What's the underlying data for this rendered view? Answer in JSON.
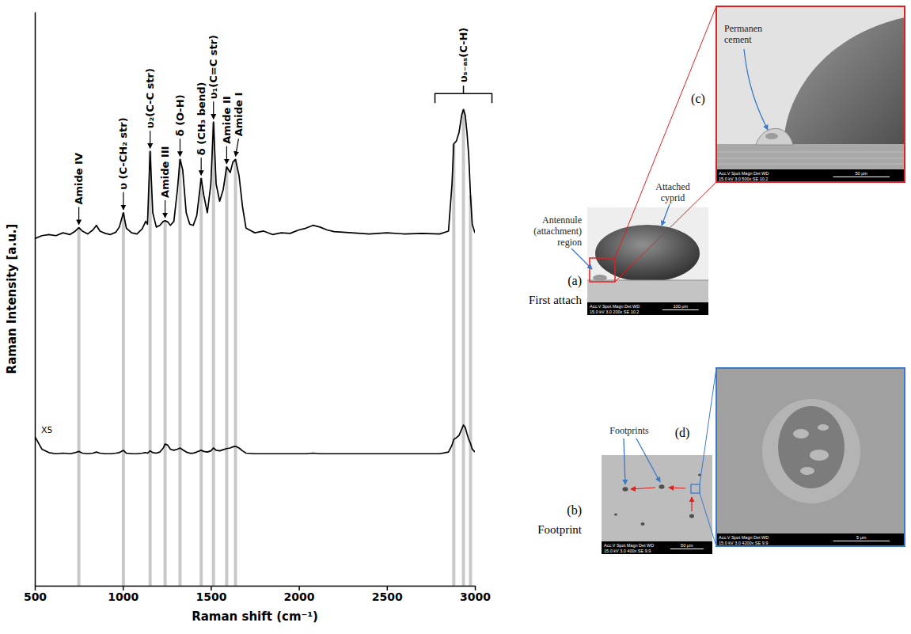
{
  "chart_data": {
    "type": "line",
    "xlabel": "Raman shift (cm⁻¹)",
    "ylabel": "Raman Intensity [a.u.]",
    "xlim": [
      500,
      3000
    ],
    "xticks": [
      500,
      1000,
      1500,
      2000,
      2500,
      3000
    ],
    "ylim": [
      0,
      100
    ],
    "tick_labels": "x",
    "series": [
      {
        "color": "#000000",
        "x": [
          500,
          540,
          580,
          620,
          660,
          700,
          730,
          750,
          770,
          800,
          830,
          850,
          870,
          900,
          930,
          960,
          980,
          1003,
          1020,
          1050,
          1080,
          1110,
          1130,
          1140,
          1155,
          1170,
          1190,
          1210,
          1230,
          1240,
          1255,
          1270,
          1290,
          1310,
          1325,
          1340,
          1360,
          1380,
          1400,
          1420,
          1445,
          1460,
          1480,
          1500,
          1515,
          1530,
          1550,
          1570,
          1590,
          1610,
          1625,
          1640,
          1660,
          1680,
          1700,
          1750,
          1800,
          1850,
          1900,
          1950,
          2000,
          2040,
          2080,
          2120,
          2160,
          2200,
          2300,
          2400,
          2500,
          2600,
          2700,
          2800,
          2850,
          2870,
          2880,
          2895,
          2910,
          2925,
          2935,
          2945,
          2955,
          2965,
          2975,
          2985,
          3000
        ],
        "values": [
          60.5,
          61,
          61.2,
          61,
          61.5,
          61.2,
          61.8,
          62.4,
          61.8,
          61.3,
          62,
          62.8,
          61.8,
          61.4,
          61.2,
          61.6,
          62.5,
          65,
          62.3,
          61.5,
          61.3,
          62.2,
          63.5,
          63,
          75.7,
          65,
          62.5,
          62.8,
          63.5,
          63.6,
          63.4,
          62.8,
          63.5,
          69,
          74.3,
          72.5,
          65,
          63,
          62.8,
          64.5,
          71,
          68,
          65,
          70,
          80.8,
          70,
          67,
          69,
          73,
          72,
          73.8,
          74.3,
          71.5,
          66,
          62.3,
          61.5,
          61.8,
          61.2,
          61.5,
          61.4,
          62,
          62.3,
          62.8,
          62.5,
          62,
          61.7,
          61.5,
          61.3,
          61.5,
          61.3,
          61.4,
          61.3,
          61.8,
          70,
          77,
          77.5,
          79,
          82,
          83,
          82,
          79,
          75,
          68,
          63,
          61.5
        ]
      },
      {
        "color": "#000000",
        "label": "X5",
        "x": [
          500,
          540,
          580,
          620,
          660,
          700,
          730,
          750,
          770,
          800,
          830,
          850,
          870,
          900,
          930,
          960,
          980,
          1003,
          1020,
          1050,
          1080,
          1110,
          1130,
          1140,
          1155,
          1170,
          1190,
          1210,
          1230,
          1240,
          1255,
          1270,
          1290,
          1310,
          1325,
          1340,
          1360,
          1380,
          1400,
          1420,
          1445,
          1460,
          1480,
          1500,
          1515,
          1530,
          1550,
          1570,
          1590,
          1610,
          1625,
          1640,
          1660,
          1680,
          1700,
          1750,
          1800,
          1850,
          1900,
          1950,
          2000,
          2040,
          2080,
          2120,
          2160,
          2200,
          2300,
          2400,
          2500,
          2600,
          2700,
          2800,
          2850,
          2870,
          2880,
          2895,
          2910,
          2925,
          2935,
          2945,
          2955,
          2965,
          2975,
          2985,
          3000
        ],
        "values": [
          26,
          23.8,
          23.2,
          23,
          23.1,
          23,
          23.2,
          23.4,
          23.1,
          23,
          23.1,
          23.3,
          23.1,
          23,
          23,
          23.1,
          23.2,
          23.6,
          23.1,
          23,
          23,
          23.1,
          23.2,
          23.1,
          23.5,
          23.2,
          23.1,
          23.3,
          24,
          24.7,
          24.5,
          23.8,
          23.6,
          23.8,
          24,
          23.7,
          23.3,
          23.1,
          23.1,
          23.3,
          23.6,
          23.4,
          23.3,
          23.5,
          24,
          23.6,
          23.5,
          23.7,
          23.9,
          24,
          24.2,
          24.3,
          24,
          23.5,
          23.1,
          23,
          23,
          23,
          23,
          23,
          23,
          23,
          23.1,
          23,
          23,
          23,
          23,
          23,
          23,
          23,
          23,
          23,
          23.3,
          24.5,
          25.5,
          25.8,
          26.2,
          27.3,
          28,
          27.6,
          26.5,
          25.5,
          24.8,
          23.8,
          23.3
        ]
      }
    ],
    "reference_lines": {
      "color": "#c8c8c8",
      "x": [
        750,
        1003,
        1155,
        1240,
        1325,
        1445,
        1515,
        1590,
        1640,
        2880,
        2935,
        2975
      ]
    },
    "annotations": [
      {
        "text": "Amide IV",
        "x": 750,
        "marker": "arrow"
      },
      {
        "text": "υ (C-CH₂ str)",
        "x": 1003,
        "marker": "arrow"
      },
      {
        "text": "υ₂(C-C str)",
        "x": 1155,
        "marker": "arrow"
      },
      {
        "text": "Amide III",
        "x": 1240,
        "marker": "arrow"
      },
      {
        "text": "δ (O-H)",
        "x": 1325,
        "marker": "arrow"
      },
      {
        "text": "δ (CH₃ bend)",
        "x": 1445,
        "marker": "arrow"
      },
      {
        "text": "υ₁(C=C str)",
        "x": 1515,
        "marker": "arrow"
      },
      {
        "text": "Amide II",
        "x": 1590,
        "marker": "arrow"
      },
      {
        "text": "Amide I",
        "x": 1640,
        "marker": "arrow"
      },
      {
        "text": "υₛ₋ₐₛ(C-H)",
        "x": 2935,
        "marker": "bracket"
      }
    ]
  },
  "figure_panels": {
    "a": {
      "letter": "(a)",
      "caption": "First attach",
      "labels": [
        "Antennule (attachment) region",
        "Attached cyprid"
      ],
      "info": [
        "Acc.V Spot Magn Det WD",
        "15.0 kV 3.0 200x SE 10.2"
      ],
      "scale_bar": "100 μm"
    },
    "b": {
      "letter": "(b)",
      "caption": "Footprint",
      "labels": [
        "Footprints"
      ],
      "info": [
        "Acc.V Spot Magn Det WD",
        "15.0 kV 3.0 400x SE 9.9"
      ],
      "scale_bar": "50 μm"
    },
    "c": {
      "letter": "(c)",
      "labels": [
        "Permanen cement"
      ],
      "info": [
        "Acc.V Spot Magn Det WD",
        "15.0 kV 3.0 500x SE 10.2"
      ],
      "scale_bar": "50 μm"
    },
    "d": {
      "letter": "(d)",
      "info": [
        "Acc.V Spot Magn Det WD",
        "15.0 kV 3.0 4200x SE 9.9"
      ],
      "scale_bar": "5 μm"
    }
  }
}
